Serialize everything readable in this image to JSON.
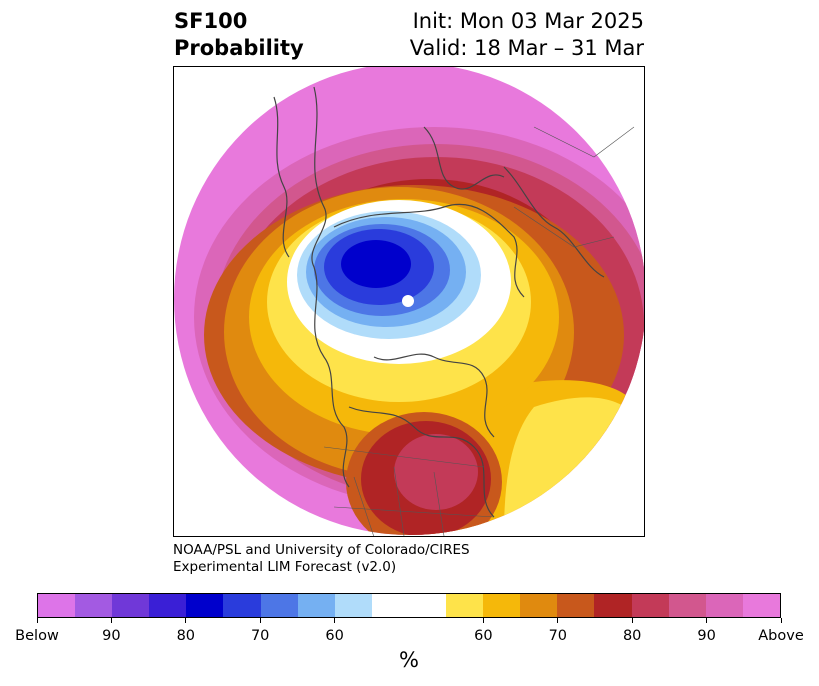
{
  "title": {
    "variable": "SF100",
    "subtitle": "Probability",
    "init": "Init: Mon 03 Mar 2025",
    "valid": "Valid: 18 Mar – 31 Mar"
  },
  "credit": {
    "line1": "NOAA/PSL and University of Colorado/CIRES",
    "line2": "Experimental LIM Forecast (v2.0)"
  },
  "colorbar": {
    "label": "%",
    "colors": [
      "#dd74e8",
      "#a35ae2",
      "#7038d8",
      "#3a1fd6",
      "#0000cc",
      "#2a3cdc",
      "#4d76e6",
      "#75b0f2",
      "#b0dcfa",
      "#ffffff",
      "#ffffff",
      "#fee34a",
      "#f5b80a",
      "#e08a0f",
      "#c8581c",
      "#b02425",
      "#c33a58",
      "#d2578e",
      "#db66b9",
      "#e879dc"
    ],
    "ticks": [
      {
        "label": "Below"
      },
      {
        "label": "90"
      },
      {
        "label": "80"
      },
      {
        "label": "70"
      },
      {
        "label": "60"
      },
      {
        "label": "60"
      },
      {
        "label": "70"
      },
      {
        "label": "80"
      },
      {
        "label": "90"
      },
      {
        "label": "Above"
      }
    ]
  },
  "map": {
    "projection": "north polar stereographic",
    "coastline_color": "#444444"
  }
}
